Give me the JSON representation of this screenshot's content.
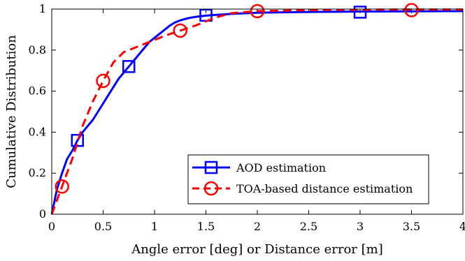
{
  "chart_data": {
    "type": "line",
    "xlabel": "Angle error [deg] or Distance error [m]",
    "ylabel": "Cumulative Distribution",
    "xlim": [
      0,
      4
    ],
    "ylim": [
      0,
      1
    ],
    "xticks": [
      "0",
      "0.5",
      "1",
      "1.5",
      "2",
      "2.5",
      "3",
      "3.5",
      "4"
    ],
    "yticks": [
      "0",
      "0.2",
      "0.4",
      "0.6",
      "0.8",
      "1"
    ],
    "grid": false,
    "legend_position": "bottom-right",
    "series": [
      {
        "name": "AOD estimation",
        "color": "#0000ff",
        "line_style": "solid",
        "marker": "square",
        "x": [
          0,
          0.05,
          0.1,
          0.15,
          0.2,
          0.25,
          0.3,
          0.35,
          0.4,
          0.45,
          0.5,
          0.55,
          0.6,
          0.65,
          0.7,
          0.75,
          0.8,
          0.85,
          0.9,
          0.95,
          1.0,
          1.05,
          1.1,
          1.15,
          1.2,
          1.25,
          1.3,
          1.35,
          1.4,
          1.45,
          1.5,
          1.6,
          1.7,
          1.8,
          1.9,
          2.0,
          2.2,
          2.5,
          3.0,
          3.5,
          4.0
        ],
        "y": [
          0,
          0.12,
          0.2,
          0.27,
          0.31,
          0.36,
          0.4,
          0.43,
          0.46,
          0.5,
          0.54,
          0.58,
          0.62,
          0.66,
          0.69,
          0.72,
          0.75,
          0.78,
          0.81,
          0.84,
          0.86,
          0.88,
          0.9,
          0.92,
          0.935,
          0.945,
          0.952,
          0.958,
          0.962,
          0.965,
          0.968,
          0.972,
          0.975,
          0.978,
          0.98,
          0.982,
          0.984,
          0.986,
          0.988,
          0.989,
          0.99
        ],
        "marker_points": [
          {
            "x": 0.25,
            "y": 0.36
          },
          {
            "x": 0.75,
            "y": 0.72
          },
          {
            "x": 1.5,
            "y": 0.97
          },
          {
            "x": 3.0,
            "y": 0.985
          }
        ]
      },
      {
        "name": "TOA-based distance estimation",
        "color": "#ff0000",
        "line_style": "dashed",
        "marker": "circle",
        "x": [
          0,
          0.1,
          0.2,
          0.3,
          0.4,
          0.5,
          0.6,
          0.7,
          0.8,
          0.9,
          1.0,
          1.1,
          1.25,
          1.4,
          1.5,
          1.6,
          1.75,
          2.0,
          2.5,
          3.0,
          3.5,
          4.0
        ],
        "y": [
          0,
          0.135,
          0.27,
          0.43,
          0.55,
          0.65,
          0.74,
          0.79,
          0.81,
          0.83,
          0.85,
          0.87,
          0.895,
          0.92,
          0.94,
          0.96,
          0.98,
          0.99,
          0.995,
          0.997,
          0.998,
          0.998
        ],
        "marker_points": [
          {
            "x": 0.1,
            "y": 0.135
          },
          {
            "x": 0.5,
            "y": 0.65
          },
          {
            "x": 1.25,
            "y": 0.895
          },
          {
            "x": 2.0,
            "y": 0.99
          },
          {
            "x": 3.5,
            "y": 0.995
          }
        ]
      }
    ]
  }
}
